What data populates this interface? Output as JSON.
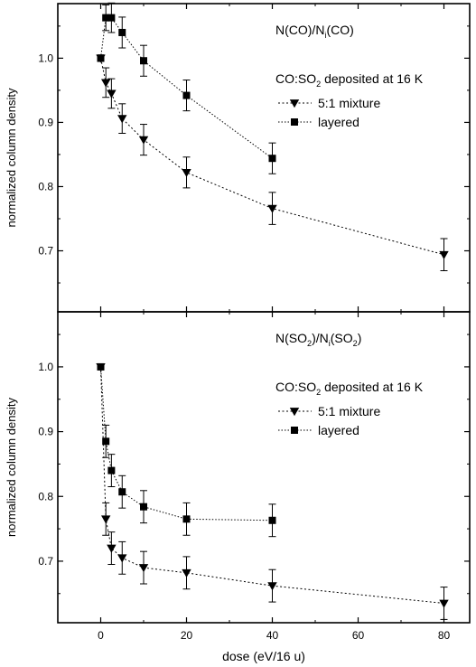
{
  "chart_data": {
    "type": "scatter",
    "xlabel": "dose (eV/16 u)",
    "xlim": [
      -10,
      86
    ],
    "xticks": [
      0,
      20,
      40,
      60,
      80
    ],
    "panels": [
      {
        "ylabel": "normalized column density",
        "ylim": [
          0.605,
          1.085
        ],
        "yticks": [
          0.7,
          0.8,
          0.9,
          1.0
        ],
        "title": "N(CO)/N_i(CO)",
        "annotation": "CO:SO_2 deposited at 16 K",
        "series": [
          {
            "name": "5:1 mixture",
            "marker": "triangle-down",
            "line": "dotted",
            "x": [
              0,
              1.2,
              2.5,
              5,
              10,
              20,
              40,
              80
            ],
            "y": [
              1.0,
              0.962,
              0.945,
              0.906,
              0.873,
              0.822,
              0.766,
              0.694
            ],
            "err": [
              0.005,
              0.023,
              0.023,
              0.023,
              0.024,
              0.024,
              0.025,
              0.025
            ]
          },
          {
            "name": "layered",
            "marker": "square",
            "line": "dotted",
            "x": [
              0,
              1.2,
              2.5,
              5,
              10,
              20,
              40
            ],
            "y": [
              1.0,
              1.063,
              1.063,
              1.04,
              0.996,
              0.942,
              0.844
            ],
            "err": [
              0.005,
              0.02,
              0.023,
              0.024,
              0.024,
              0.024,
              0.024
            ]
          }
        ]
      },
      {
        "ylabel": "normalized column density",
        "ylim": [
          0.605,
          1.085
        ],
        "yticks": [
          0.7,
          0.8,
          0.9,
          1.0
        ],
        "title": "N(SO_2)/N_i(SO_2)",
        "annotation": "CO:SO_2 deposited at 16 K",
        "series": [
          {
            "name": "5:1 mixture",
            "marker": "triangle-down",
            "line": "dotted",
            "x": [
              0,
              1.2,
              2.5,
              5,
              10,
              20,
              40,
              80
            ],
            "y": [
              1.0,
              0.765,
              0.72,
              0.705,
              0.69,
              0.682,
              0.662,
              0.635
            ],
            "err": [
              0.004,
              0.025,
              0.025,
              0.025,
              0.025,
              0.025,
              0.025,
              0.025
            ]
          },
          {
            "name": "layered",
            "marker": "square",
            "line": "dotted",
            "x": [
              0,
              1.2,
              2.5,
              5,
              10,
              20,
              40
            ],
            "y": [
              1.0,
              0.885,
              0.84,
              0.807,
              0.784,
              0.765,
              0.763
            ],
            "err": [
              0.004,
              0.025,
              0.025,
              0.025,
              0.025,
              0.025,
              0.025
            ]
          }
        ]
      }
    ]
  }
}
